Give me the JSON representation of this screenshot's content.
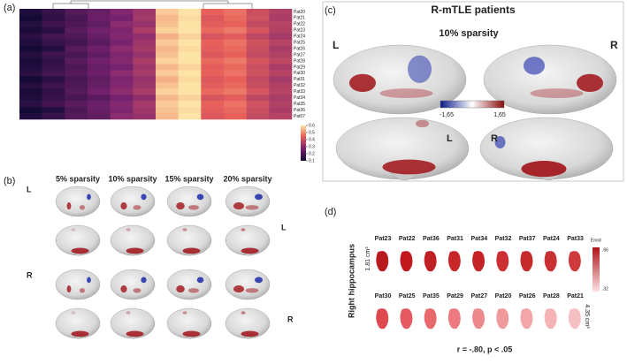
{
  "panel_a": {
    "label": "(a)",
    "patients": [
      "Pat20",
      "Pat21",
      "Pat22",
      "Pat23",
      "Pat24",
      "Pat25",
      "Pat26",
      "Pat27",
      "Pat28",
      "Pat29",
      "Pat30",
      "Pat31",
      "Pat32",
      "Pat33",
      "Pat34",
      "Pat35",
      "Pat36",
      "Pat07"
    ],
    "heatmap": [
      [
        0.12,
        0.16,
        0.21,
        0.24,
        0.29,
        0.33,
        0.57,
        0.6,
        0.45,
        0.47,
        0.4,
        0.36
      ],
      [
        0.1,
        0.15,
        0.19,
        0.25,
        0.27,
        0.34,
        0.55,
        0.59,
        0.43,
        0.46,
        0.41,
        0.35
      ],
      [
        0.13,
        0.17,
        0.2,
        0.23,
        0.3,
        0.32,
        0.56,
        0.61,
        0.44,
        0.45,
        0.39,
        0.37
      ],
      [
        0.11,
        0.14,
        0.22,
        0.26,
        0.28,
        0.35,
        0.58,
        0.6,
        0.46,
        0.48,
        0.42,
        0.36
      ],
      [
        0.14,
        0.18,
        0.2,
        0.24,
        0.29,
        0.31,
        0.54,
        0.58,
        0.42,
        0.44,
        0.38,
        0.34
      ],
      [
        0.12,
        0.16,
        0.18,
        0.22,
        0.27,
        0.33,
        0.57,
        0.62,
        0.45,
        0.47,
        0.41,
        0.37
      ],
      [
        0.1,
        0.13,
        0.21,
        0.25,
        0.3,
        0.34,
        0.55,
        0.59,
        0.44,
        0.46,
        0.4,
        0.35
      ],
      [
        0.13,
        0.17,
        0.19,
        0.23,
        0.28,
        0.32,
        0.56,
        0.6,
        0.43,
        0.45,
        0.39,
        0.36
      ],
      [
        0.11,
        0.15,
        0.22,
        0.26,
        0.29,
        0.35,
        0.58,
        0.61,
        0.46,
        0.48,
        0.42,
        0.38
      ],
      [
        0.12,
        0.16,
        0.2,
        0.24,
        0.27,
        0.33,
        0.55,
        0.58,
        0.44,
        0.46,
        0.4,
        0.35
      ],
      [
        0.14,
        0.18,
        0.21,
        0.25,
        0.3,
        0.34,
        0.57,
        0.6,
        0.45,
        0.47,
        0.41,
        0.37
      ],
      [
        0.1,
        0.14,
        0.19,
        0.23,
        0.28,
        0.32,
        0.54,
        0.59,
        0.43,
        0.45,
        0.39,
        0.34
      ],
      [
        0.13,
        0.17,
        0.2,
        0.24,
        0.29,
        0.33,
        0.56,
        0.61,
        0.44,
        0.46,
        0.4,
        0.36
      ],
      [
        0.11,
        0.15,
        0.21,
        0.26,
        0.3,
        0.35,
        0.58,
        0.62,
        0.46,
        0.48,
        0.42,
        0.37
      ],
      [
        0.12,
        0.16,
        0.19,
        0.22,
        0.27,
        0.31,
        0.55,
        0.58,
        0.42,
        0.44,
        0.38,
        0.35
      ],
      [
        0.14,
        0.18,
        0.22,
        0.25,
        0.29,
        0.34,
        0.57,
        0.6,
        0.45,
        0.47,
        0.41,
        0.36
      ],
      [
        0.1,
        0.13,
        0.2,
        0.24,
        0.28,
        0.33,
        0.56,
        0.59,
        0.44,
        0.46,
        0.4,
        0.35
      ],
      [
        0.12,
        0.16,
        0.21,
        0.23,
        0.3,
        0.32,
        0.55,
        0.61,
        0.43,
        0.45,
        0.39,
        0.37
      ]
    ],
    "colorbar_ticks": [
      0.6,
      0.5,
      0.4,
      0.3,
      0.2,
      0.1
    ]
  },
  "panel_b": {
    "label": "(b)",
    "sparsities": [
      "5% sparsity",
      "10% sparsity",
      "15% sparsity",
      "20% sparsity"
    ],
    "side_labels": [
      "L",
      "L",
      "R",
      "R"
    ]
  },
  "panel_c": {
    "label": "(c)",
    "title": "R-mTLE patients",
    "subtitle": "10% sparsity",
    "hemispheres": [
      "L",
      "R"
    ],
    "colorbar_labels": [
      "-1,65",
      "1,65"
    ],
    "medial_labels": [
      "L",
      "R"
    ]
  },
  "panel_d": {
    "label": "(d)",
    "structure": "Right hippocampus",
    "row1": [
      "Pat23",
      "Pat22",
      "Pat36",
      "Pat31",
      "Pat34",
      "Pat32",
      "Pat37",
      "Pat24",
      "Pat33"
    ],
    "row2": [
      "Pat30",
      "Pat25",
      "Pat35",
      "Pat29",
      "Pat27",
      "Pat20",
      "Pat26",
      "Pat28",
      "Pat21"
    ],
    "volume_min": "1.81 cm³",
    "volume_max": "4.35 cm³",
    "colorbar_title": "Enod",
    "colorbar_labels": [
      ".66",
      ".32"
    ],
    "stat": "r = -.80, p < .05"
  }
}
